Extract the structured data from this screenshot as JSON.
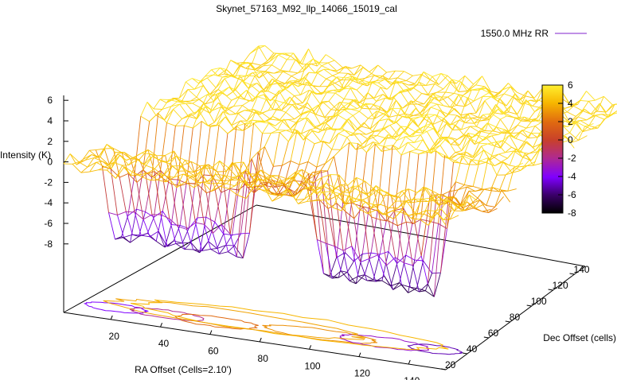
{
  "chart_data": {
    "type": "surface3d",
    "title": "Skynet_57163_M92_llp_14066_15019_cal",
    "xlabel": "RA Offset (Cells=2.10')",
    "ylabel": "Dec Offset (cells)",
    "zlabel": "Intensity (K)",
    "series": [
      {
        "name": "1550.0 MHz RR"
      }
    ],
    "xlim": [
      1,
      155
    ],
    "ylim": [
      20,
      150
    ],
    "zlim": [
      -10,
      6
    ],
    "x_ticks": [
      "20",
      "40",
      "60",
      "80",
      "100",
      "120",
      "140"
    ],
    "y_ticks": [
      "20",
      "40",
      "60",
      "80",
      "100",
      "120",
      "140"
    ],
    "z_ticks": [
      "6",
      "4",
      "2",
      "0",
      "-2",
      "-4",
      "-6",
      "-8"
    ],
    "colorbar": {
      "range": [
        -8,
        6
      ],
      "ticks": [
        "6",
        "4",
        "2",
        "0",
        "-2",
        "-4",
        "-6",
        "-8"
      ],
      "colors": [
        "#000000",
        "#7f00ff",
        "#b02a90",
        "#c8402a",
        "#e06a10",
        "#f7b600",
        "#ffef30"
      ]
    },
    "surface": {
      "plateau_level": 5.2,
      "ridge_level": 4.5,
      "trough_min": -7.0,
      "trough_segments": [
        {
          "x": [
            1,
            50
          ],
          "depth": -5.5
        },
        {
          "x": [
            55,
            75
          ],
          "depth": 1.0
        },
        {
          "x": [
            85,
            130
          ],
          "depth": -6.5
        }
      ]
    },
    "grid": false,
    "legend": "top-right",
    "colors": {
      "line": "#9b4dd6"
    }
  }
}
